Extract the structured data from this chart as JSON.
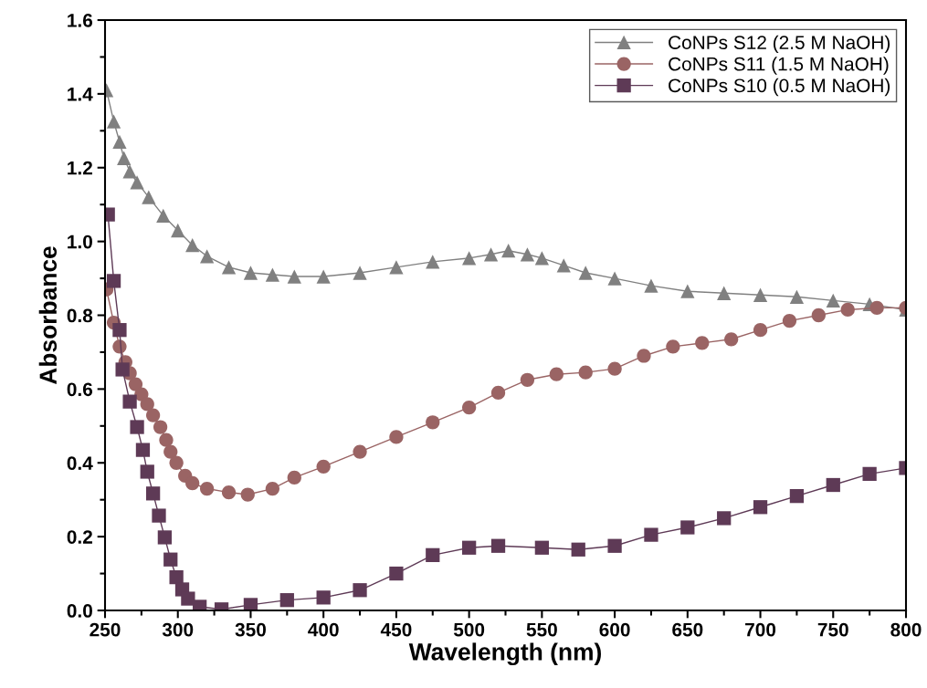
{
  "chart_data": {
    "type": "line",
    "xlabel": "Wavelength (nm)",
    "ylabel": "Absorbance",
    "xlim": [
      250,
      800
    ],
    "xticks": [
      250,
      300,
      350,
      400,
      450,
      500,
      550,
      600,
      650,
      700,
      750,
      800
    ],
    "ylim": [
      0,
      1.6
    ],
    "yticks": [
      {
        "value": 0,
        "label": "0.0"
      },
      0.2,
      0.4,
      0.6,
      0.8,
      {
        "value": 1,
        "label": "1.0"
      },
      1.2,
      1.4,
      1.6
    ],
    "grid": false,
    "legend": "top right",
    "series": [
      {
        "name": "CoNPs S12 (2.5 M NaOH)",
        "color": "#808080",
        "marker": "triangle",
        "x": [
          251,
          256,
          260,
          263,
          267,
          272,
          280,
          290,
          300,
          310,
          320,
          335,
          350,
          365,
          380,
          400,
          425,
          450,
          475,
          500,
          515,
          527,
          540,
          550,
          565,
          580,
          600,
          625,
          650,
          675,
          700,
          725,
          750,
          775,
          800
        ],
        "values": [
          1.41,
          1.325,
          1.27,
          1.226,
          1.19,
          1.16,
          1.12,
          1.07,
          1.03,
          0.99,
          0.96,
          0.93,
          0.915,
          0.91,
          0.905,
          0.905,
          0.915,
          0.93,
          0.945,
          0.955,
          0.965,
          0.975,
          0.965,
          0.955,
          0.935,
          0.915,
          0.9,
          0.88,
          0.865,
          0.86,
          0.855,
          0.85,
          0.84,
          0.83,
          0.815
        ]
      },
      {
        "name": "CoNPs S11 (1.5 M NaOH)",
        "color": "#9a6464",
        "marker": "circle",
        "x": [
          251,
          256,
          260,
          264,
          267,
          271,
          275,
          279,
          283,
          288,
          292,
          295,
          299,
          305,
          310,
          320,
          335,
          348,
          365,
          380,
          400,
          425,
          450,
          475,
          500,
          520,
          540,
          560,
          580,
          600,
          620,
          640,
          660,
          680,
          700,
          720,
          740,
          760,
          780,
          800
        ],
        "values": [
          0.87,
          0.78,
          0.715,
          0.673,
          0.643,
          0.613,
          0.586,
          0.559,
          0.529,
          0.497,
          0.462,
          0.43,
          0.4,
          0.365,
          0.345,
          0.33,
          0.32,
          0.314,
          0.33,
          0.36,
          0.39,
          0.43,
          0.47,
          0.51,
          0.55,
          0.59,
          0.625,
          0.64,
          0.645,
          0.655,
          0.69,
          0.715,
          0.725,
          0.735,
          0.76,
          0.785,
          0.8,
          0.815,
          0.82,
          0.82
        ]
      },
      {
        "name": "CoNPs S10 (0.5 M NaOH)",
        "color": "#5e3a56",
        "marker": "square",
        "x": [
          252,
          256,
          260,
          262,
          267,
          272,
          276,
          279,
          283,
          287,
          291,
          295,
          299,
          303,
          307,
          315,
          330,
          350,
          375,
          400,
          425,
          450,
          475,
          500,
          520,
          550,
          575,
          600,
          625,
          650,
          675,
          700,
          725,
          750,
          775,
          800
        ],
        "values": [
          1.073,
          0.893,
          0.76,
          0.653,
          0.566,
          0.497,
          0.435,
          0.376,
          0.317,
          0.257,
          0.198,
          0.138,
          0.09,
          0.057,
          0.032,
          0.01,
          0.003,
          0.015,
          0.028,
          0.035,
          0.055,
          0.1,
          0.15,
          0.17,
          0.175,
          0.17,
          0.165,
          0.175,
          0.205,
          0.225,
          0.25,
          0.28,
          0.31,
          0.34,
          0.37,
          0.386
        ]
      }
    ]
  }
}
